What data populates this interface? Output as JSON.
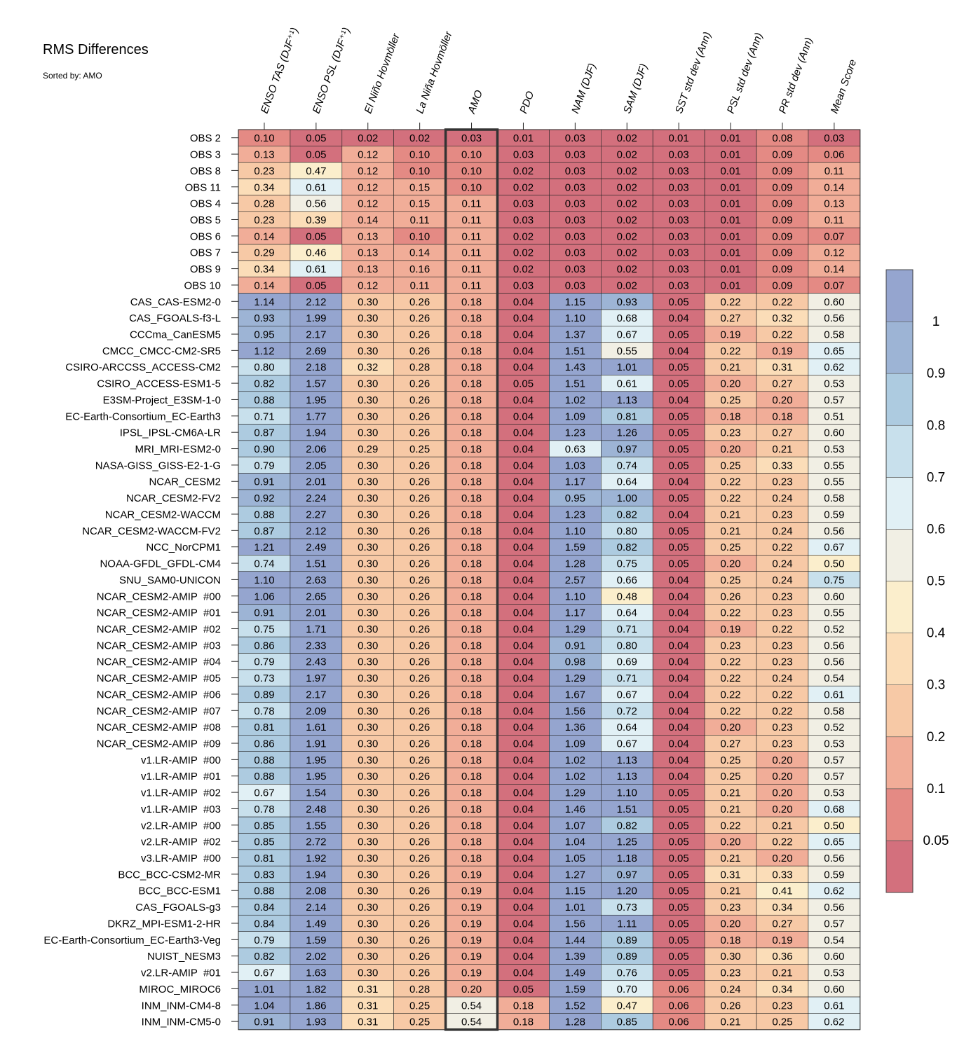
{
  "chart_data": {
    "type": "heatmap",
    "title": "RMS Differences",
    "subtitle": "Sorted by: AMO",
    "highlighted_column": "AMO",
    "columns": [
      "ENSO TAS (DJF⁺¹)",
      "ENSO PSL (DJF⁺¹)",
      "El Niño Hovmöller",
      "La Niña Hovmöller",
      "AMO",
      "PDO",
      "NAM (DJF)",
      "SAM (DJF)",
      "SST std dev (Ann)",
      "PSL std dev (Ann)",
      "PR std dev (Ann)",
      "Mean Score"
    ],
    "rows": [
      "OBS 2",
      "OBS 3",
      "OBS 8",
      "OBS 11",
      "OBS 4",
      "OBS 5",
      "OBS 6",
      "OBS 7",
      "OBS 9",
      "OBS 10",
      "CAS_CAS-ESM2-0",
      "CAS_FGOALS-f3-L",
      "CCCma_CanESM5",
      "CMCC_CMCC-CM2-SR5",
      "CSIRO-ARCCSS_ACCESS-CM2",
      "CSIRO_ACCESS-ESM1-5",
      "E3SM-Project_E3SM-1-0",
      "EC-Earth-Consortium_EC-Earth3",
      "IPSL_IPSL-CM6A-LR",
      "MRI_MRI-ESM2-0",
      "NASA-GISS_GISS-E2-1-G",
      "NCAR_CESM2",
      "NCAR_CESM2-FV2",
      "NCAR_CESM2-WACCM",
      "NCAR_CESM2-WACCM-FV2",
      "NCC_NorCPM1",
      "NOAA-GFDL_GFDL-CM4",
      "SNU_SAM0-UNICON",
      "NCAR_CESM2-AMIP  #00",
      "NCAR_CESM2-AMIP  #01",
      "NCAR_CESM2-AMIP  #02",
      "NCAR_CESM2-AMIP  #03",
      "NCAR_CESM2-AMIP  #04",
      "NCAR_CESM2-AMIP  #05",
      "NCAR_CESM2-AMIP  #06",
      "NCAR_CESM2-AMIP  #07",
      "NCAR_CESM2-AMIP  #08",
      "NCAR_CESM2-AMIP  #09",
      "v1.LR-AMIP  #00",
      "v1.LR-AMIP  #01",
      "v1.LR-AMIP  #02",
      "v1.LR-AMIP  #03",
      "v2.LR-AMIP  #00",
      "v2.LR-AMIP  #02",
      "v3.LR-AMIP  #00",
      "BCC_BCC-CSM2-MR",
      "BCC_BCC-ESM1",
      "CAS_FGOALS-g3",
      "DKRZ_MPI-ESM1-2-HR",
      "EC-Earth-Consortium_EC-Earth3-Veg",
      "NUIST_NESM3",
      "v2.LR-AMIP  #01",
      "MIROC_MIROC6",
      "INM_INM-CM4-8",
      "INM_INM-CM5-0"
    ],
    "values": [
      [
        "0.10",
        "0.05",
        "0.02",
        "0.02",
        "0.03",
        "0.01",
        "0.03",
        "0.02",
        "0.01",
        "0.01",
        "0.08",
        "0.03"
      ],
      [
        "0.13",
        "0.05",
        "0.12",
        "0.10",
        "0.10",
        "0.03",
        "0.03",
        "0.02",
        "0.03",
        "0.01",
        "0.09",
        "0.06"
      ],
      [
        "0.23",
        "0.47",
        "0.12",
        "0.10",
        "0.10",
        "0.02",
        "0.03",
        "0.02",
        "0.03",
        "0.01",
        "0.09",
        "0.11"
      ],
      [
        "0.34",
        "0.61",
        "0.12",
        "0.15",
        "0.10",
        "0.02",
        "0.03",
        "0.02",
        "0.03",
        "0.01",
        "0.09",
        "0.14"
      ],
      [
        "0.28",
        "0.56",
        "0.12",
        "0.15",
        "0.11",
        "0.03",
        "0.03",
        "0.02",
        "0.03",
        "0.01",
        "0.09",
        "0.13"
      ],
      [
        "0.23",
        "0.39",
        "0.14",
        "0.11",
        "0.11",
        "0.03",
        "0.03",
        "0.02",
        "0.03",
        "0.01",
        "0.09",
        "0.11"
      ],
      [
        "0.14",
        "0.05",
        "0.13",
        "0.10",
        "0.11",
        "0.02",
        "0.03",
        "0.02",
        "0.03",
        "0.01",
        "0.09",
        "0.07"
      ],
      [
        "0.29",
        "0.46",
        "0.13",
        "0.14",
        "0.11",
        "0.02",
        "0.03",
        "0.02",
        "0.03",
        "0.01",
        "0.09",
        "0.12"
      ],
      [
        "0.34",
        "0.61",
        "0.13",
        "0.16",
        "0.11",
        "0.02",
        "0.03",
        "0.02",
        "0.03",
        "0.01",
        "0.09",
        "0.14"
      ],
      [
        "0.14",
        "0.05",
        "0.12",
        "0.11",
        "0.11",
        "0.03",
        "0.03",
        "0.02",
        "0.03",
        "0.01",
        "0.09",
        "0.07"
      ],
      [
        "1.14",
        "2.12",
        "0.30",
        "0.26",
        "0.18",
        "0.04",
        "1.15",
        "0.93",
        "0.05",
        "0.22",
        "0.22",
        "0.60"
      ],
      [
        "0.93",
        "1.99",
        "0.30",
        "0.26",
        "0.18",
        "0.04",
        "1.10",
        "0.68",
        "0.04",
        "0.27",
        "0.32",
        "0.56"
      ],
      [
        "0.95",
        "2.17",
        "0.30",
        "0.26",
        "0.18",
        "0.04",
        "1.37",
        "0.67",
        "0.05",
        "0.19",
        "0.22",
        "0.58"
      ],
      [
        "1.12",
        "2.69",
        "0.30",
        "0.26",
        "0.18",
        "0.04",
        "1.51",
        "0.55",
        "0.04",
        "0.22",
        "0.19",
        "0.65"
      ],
      [
        "0.80",
        "2.18",
        "0.32",
        "0.28",
        "0.18",
        "0.04",
        "1.43",
        "1.01",
        "0.05",
        "0.21",
        "0.31",
        "0.62"
      ],
      [
        "0.82",
        "1.57",
        "0.30",
        "0.26",
        "0.18",
        "0.05",
        "1.51",
        "0.61",
        "0.05",
        "0.20",
        "0.27",
        "0.53"
      ],
      [
        "0.88",
        "1.95",
        "0.30",
        "0.26",
        "0.18",
        "0.04",
        "1.02",
        "1.13",
        "0.04",
        "0.25",
        "0.20",
        "0.57"
      ],
      [
        "0.71",
        "1.77",
        "0.30",
        "0.26",
        "0.18",
        "0.04",
        "1.09",
        "0.81",
        "0.05",
        "0.18",
        "0.18",
        "0.51"
      ],
      [
        "0.87",
        "1.94",
        "0.30",
        "0.26",
        "0.18",
        "0.04",
        "1.23",
        "1.26",
        "0.05",
        "0.23",
        "0.27",
        "0.60"
      ],
      [
        "0.90",
        "2.06",
        "0.29",
        "0.25",
        "0.18",
        "0.04",
        "0.63",
        "0.97",
        "0.05",
        "0.20",
        "0.21",
        "0.53"
      ],
      [
        "0.79",
        "2.05",
        "0.30",
        "0.26",
        "0.18",
        "0.04",
        "1.03",
        "0.74",
        "0.05",
        "0.25",
        "0.33",
        "0.55"
      ],
      [
        "0.91",
        "2.01",
        "0.30",
        "0.26",
        "0.18",
        "0.04",
        "1.17",
        "0.64",
        "0.04",
        "0.22",
        "0.23",
        "0.55"
      ],
      [
        "0.92",
        "2.24",
        "0.30",
        "0.26",
        "0.18",
        "0.04",
        "0.95",
        "1.00",
        "0.05",
        "0.22",
        "0.24",
        "0.58"
      ],
      [
        "0.88",
        "2.27",
        "0.30",
        "0.26",
        "0.18",
        "0.04",
        "1.23",
        "0.82",
        "0.04",
        "0.21",
        "0.23",
        "0.59"
      ],
      [
        "0.87",
        "2.12",
        "0.30",
        "0.26",
        "0.18",
        "0.04",
        "1.10",
        "0.80",
        "0.05",
        "0.21",
        "0.24",
        "0.56"
      ],
      [
        "1.21",
        "2.49",
        "0.30",
        "0.26",
        "0.18",
        "0.04",
        "1.59",
        "0.82",
        "0.05",
        "0.25",
        "0.22",
        "0.67"
      ],
      [
        "0.74",
        "1.51",
        "0.30",
        "0.26",
        "0.18",
        "0.04",
        "1.28",
        "0.75",
        "0.05",
        "0.20",
        "0.24",
        "0.50"
      ],
      [
        "1.10",
        "2.63",
        "0.30",
        "0.26",
        "0.18",
        "0.04",
        "2.57",
        "0.66",
        "0.04",
        "0.25",
        "0.24",
        "0.75"
      ],
      [
        "1.06",
        "2.65",
        "0.30",
        "0.26",
        "0.18",
        "0.04",
        "1.10",
        "0.48",
        "0.04",
        "0.26",
        "0.23",
        "0.60"
      ],
      [
        "0.91",
        "2.01",
        "0.30",
        "0.26",
        "0.18",
        "0.04",
        "1.17",
        "0.64",
        "0.04",
        "0.22",
        "0.23",
        "0.55"
      ],
      [
        "0.75",
        "1.71",
        "0.30",
        "0.26",
        "0.18",
        "0.04",
        "1.29",
        "0.71",
        "0.04",
        "0.19",
        "0.22",
        "0.52"
      ],
      [
        "0.86",
        "2.33",
        "0.30",
        "0.26",
        "0.18",
        "0.04",
        "0.91",
        "0.80",
        "0.04",
        "0.23",
        "0.23",
        "0.56"
      ],
      [
        "0.79",
        "2.43",
        "0.30",
        "0.26",
        "0.18",
        "0.04",
        "0.98",
        "0.69",
        "0.04",
        "0.22",
        "0.23",
        "0.56"
      ],
      [
        "0.73",
        "1.97",
        "0.30",
        "0.26",
        "0.18",
        "0.04",
        "1.29",
        "0.71",
        "0.04",
        "0.22",
        "0.24",
        "0.54"
      ],
      [
        "0.89",
        "2.17",
        "0.30",
        "0.26",
        "0.18",
        "0.04",
        "1.67",
        "0.67",
        "0.04",
        "0.22",
        "0.22",
        "0.61"
      ],
      [
        "0.78",
        "2.09",
        "0.30",
        "0.26",
        "0.18",
        "0.04",
        "1.56",
        "0.72",
        "0.04",
        "0.22",
        "0.22",
        "0.58"
      ],
      [
        "0.81",
        "1.61",
        "0.30",
        "0.26",
        "0.18",
        "0.04",
        "1.36",
        "0.64",
        "0.04",
        "0.20",
        "0.23",
        "0.52"
      ],
      [
        "0.86",
        "1.91",
        "0.30",
        "0.26",
        "0.18",
        "0.04",
        "1.09",
        "0.67",
        "0.04",
        "0.27",
        "0.23",
        "0.53"
      ],
      [
        "0.88",
        "1.95",
        "0.30",
        "0.26",
        "0.18",
        "0.04",
        "1.02",
        "1.13",
        "0.04",
        "0.25",
        "0.20",
        "0.57"
      ],
      [
        "0.88",
        "1.95",
        "0.30",
        "0.26",
        "0.18",
        "0.04",
        "1.02",
        "1.13",
        "0.04",
        "0.25",
        "0.20",
        "0.57"
      ],
      [
        "0.67",
        "1.54",
        "0.30",
        "0.26",
        "0.18",
        "0.04",
        "1.29",
        "1.10",
        "0.05",
        "0.21",
        "0.20",
        "0.53"
      ],
      [
        "0.78",
        "2.48",
        "0.30",
        "0.26",
        "0.18",
        "0.04",
        "1.46",
        "1.51",
        "0.05",
        "0.21",
        "0.20",
        "0.68"
      ],
      [
        "0.85",
        "1.55",
        "0.30",
        "0.26",
        "0.18",
        "0.04",
        "1.07",
        "0.82",
        "0.05",
        "0.22",
        "0.21",
        "0.50"
      ],
      [
        "0.85",
        "2.72",
        "0.30",
        "0.26",
        "0.18",
        "0.04",
        "1.04",
        "1.25",
        "0.05",
        "0.20",
        "0.22",
        "0.65"
      ],
      [
        "0.81",
        "1.92",
        "0.30",
        "0.26",
        "0.18",
        "0.04",
        "1.05",
        "1.18",
        "0.05",
        "0.21",
        "0.20",
        "0.56"
      ],
      [
        "0.83",
        "1.94",
        "0.30",
        "0.26",
        "0.19",
        "0.04",
        "1.27",
        "0.97",
        "0.05",
        "0.31",
        "0.33",
        "0.59"
      ],
      [
        "0.88",
        "2.08",
        "0.30",
        "0.26",
        "0.19",
        "0.04",
        "1.15",
        "1.20",
        "0.05",
        "0.21",
        "0.41",
        "0.62"
      ],
      [
        "0.84",
        "2.14",
        "0.30",
        "0.26",
        "0.19",
        "0.04",
        "1.01",
        "0.73",
        "0.05",
        "0.23",
        "0.34",
        "0.56"
      ],
      [
        "0.84",
        "1.49",
        "0.30",
        "0.26",
        "0.19",
        "0.04",
        "1.56",
        "1.11",
        "0.05",
        "0.20",
        "0.27",
        "0.57"
      ],
      [
        "0.79",
        "1.59",
        "0.30",
        "0.26",
        "0.19",
        "0.04",
        "1.44",
        "0.89",
        "0.05",
        "0.18",
        "0.19",
        "0.54"
      ],
      [
        "0.82",
        "2.02",
        "0.30",
        "0.26",
        "0.19",
        "0.04",
        "1.39",
        "0.89",
        "0.05",
        "0.30",
        "0.36",
        "0.60"
      ],
      [
        "0.67",
        "1.63",
        "0.30",
        "0.26",
        "0.19",
        "0.04",
        "1.49",
        "0.76",
        "0.05",
        "0.23",
        "0.21",
        "0.53"
      ],
      [
        "1.01",
        "1.82",
        "0.31",
        "0.28",
        "0.20",
        "0.05",
        "1.59",
        "0.70",
        "0.06",
        "0.24",
        "0.34",
        "0.60"
      ],
      [
        "1.04",
        "1.86",
        "0.31",
        "0.25",
        "0.54",
        "0.18",
        "1.52",
        "0.47",
        "0.06",
        "0.26",
        "0.23",
        "0.61"
      ],
      [
        "0.91",
        "1.93",
        "0.31",
        "0.25",
        "0.54",
        "0.18",
        "1.28",
        "0.85",
        "0.06",
        "0.21",
        "0.25",
        "0.62"
      ]
    ],
    "colorbar": {
      "levels": [
        0.05,
        0.1,
        0.2,
        0.3,
        0.4,
        0.5,
        0.6,
        0.7,
        0.8,
        0.9,
        1
      ],
      "tick_labels": [
        "0.05",
        "0.1",
        "0.2",
        "0.3",
        "0.4",
        "0.5",
        "0.6",
        "0.7",
        "0.8",
        "0.9",
        "1"
      ],
      "colors": [
        "#d3707d",
        "#e48a84",
        "#f1ad98",
        "#f7c9a6",
        "#fbddb8",
        "#fbeecc",
        "#f1efe4",
        "#e1f0f5",
        "#c8e0ec",
        "#adcbe0",
        "#9db4d5",
        "#95a5cf"
      ]
    }
  }
}
